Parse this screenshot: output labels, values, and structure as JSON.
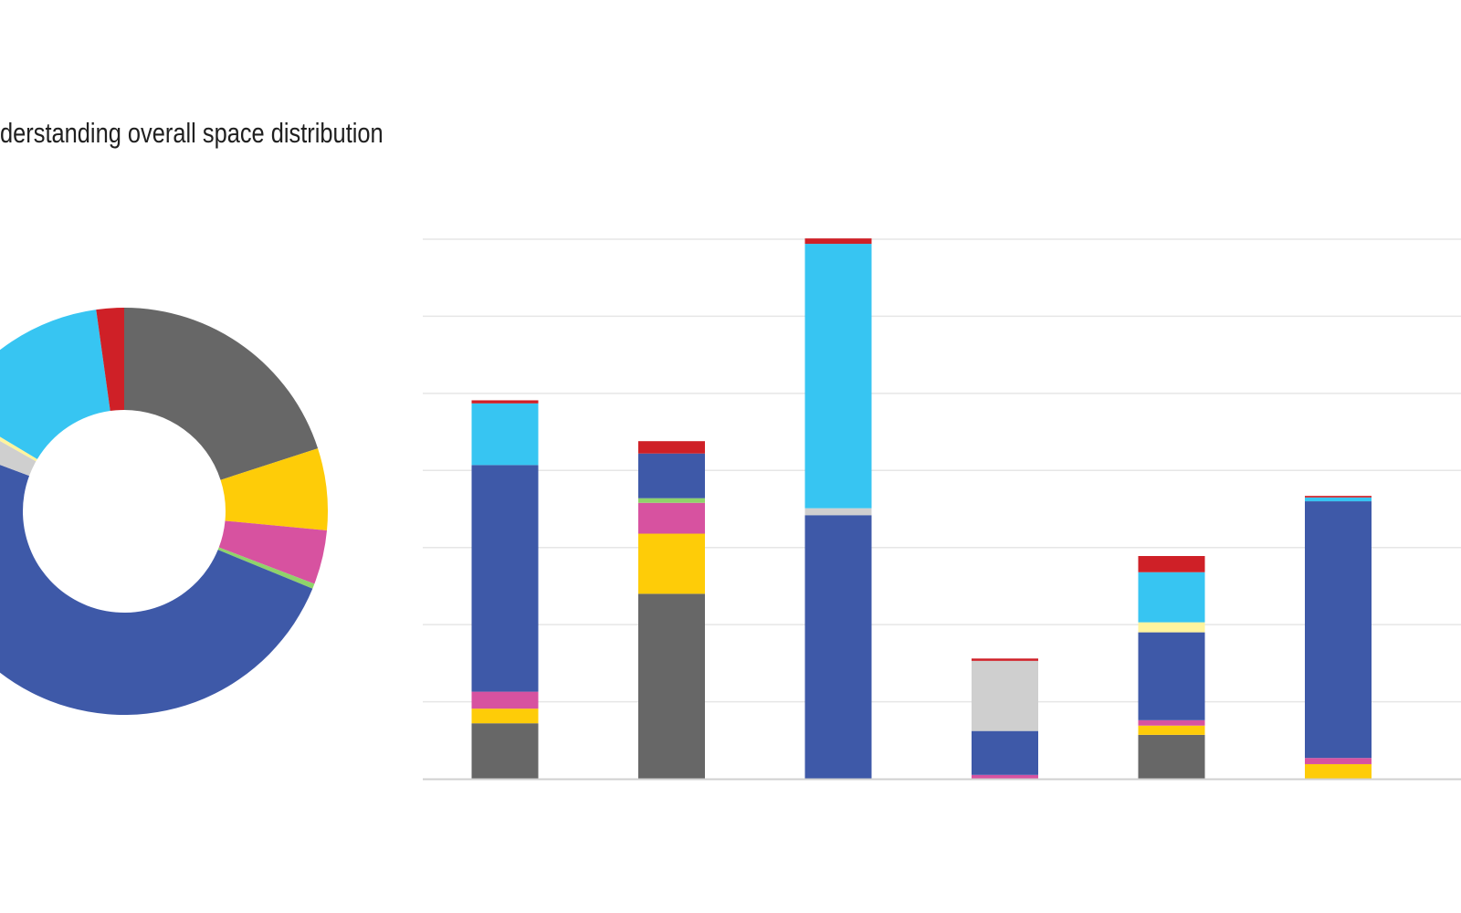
{
  "headline": "derstanding overall space distribution",
  "colors": {
    "gray": "#676767",
    "yellow": "#fecc08",
    "pink": "#d752a0",
    "green": "#8fd36a",
    "blue": "#3e59a8",
    "light_gray": "#cfcfcf",
    "light_yellow": "#fff49e",
    "cyan": "#37c5f2",
    "red": "#cf2027",
    "grid": "#e6e6e6",
    "axis": "#d0d0d0"
  },
  "chart_data": [
    {
      "type": "donut",
      "title": "",
      "segments": [
        {
          "key": "gray",
          "value": 20.0,
          "color": "#676767"
        },
        {
          "key": "yellow",
          "value": 6.5,
          "color": "#fecc08"
        },
        {
          "key": "pink",
          "value": 4.3,
          "color": "#d752a0"
        },
        {
          "key": "green",
          "value": 0.4,
          "color": "#8fd36a"
        },
        {
          "key": "blue",
          "value": 49.5,
          "color": "#3e59a8"
        },
        {
          "key": "light_gray",
          "value": 2.5,
          "color": "#cfcfcf"
        },
        {
          "key": "light_yellow",
          "value": 0.4,
          "color": "#fff49e"
        },
        {
          "key": "cyan",
          "value": 14.2,
          "color": "#37c5f2"
        },
        {
          "key": "red",
          "value": 2.2,
          "color": "#cf2027"
        }
      ]
    },
    {
      "type": "bar",
      "stacked": true,
      "title": "",
      "xlabel": "",
      "ylabel": "",
      "ylim": [
        0,
        70
      ],
      "grid": true,
      "categories": [
        "",
        "",
        "",
        "",
        "",
        ""
      ],
      "series": [
        {
          "key": "gray",
          "color": "#676767",
          "values": [
            7.2,
            24.0,
            0,
            0,
            5.7,
            0
          ]
        },
        {
          "key": "yellow",
          "color": "#fecc08",
          "values": [
            1.9,
            7.8,
            0,
            0,
            1.2,
            1.9
          ]
        },
        {
          "key": "pink",
          "color": "#d752a0",
          "values": [
            2.2,
            4.0,
            0,
            0.5,
            0.7,
            0.8
          ]
        },
        {
          "key": "green",
          "color": "#8fd36a",
          "values": [
            0,
            0.6,
            0,
            0,
            0,
            0
          ]
        },
        {
          "key": "blue",
          "color": "#3e59a8",
          "values": [
            29.4,
            5.8,
            34.2,
            5.7,
            11.4,
            33.3
          ]
        },
        {
          "key": "light_gray",
          "color": "#cfcfcf",
          "values": [
            0,
            0,
            0.9,
            9.1,
            0,
            0
          ]
        },
        {
          "key": "light_yellow",
          "color": "#fff49e",
          "values": [
            0,
            0,
            0,
            0,
            1.3,
            0
          ]
        },
        {
          "key": "cyan",
          "color": "#37c5f2",
          "values": [
            8.0,
            0,
            34.3,
            0,
            6.5,
            0.5
          ]
        },
        {
          "key": "red",
          "color": "#cf2027",
          "values": [
            0.4,
            1.6,
            0.7,
            0.3,
            2.1,
            0.2
          ]
        }
      ]
    }
  ]
}
